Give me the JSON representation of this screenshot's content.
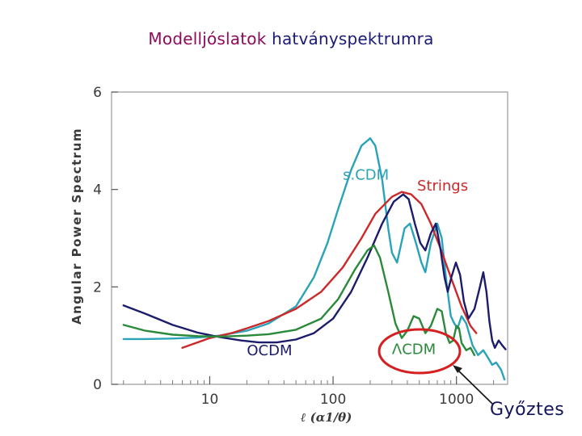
{
  "title": {
    "part1": "Modelljóslatok",
    "part2": "hatványspektrumra"
  },
  "annotation": {
    "label": "Győztes",
    "target": "ΛCDM",
    "color": "#d42020"
  },
  "chart_data": {
    "type": "line",
    "title": "",
    "xlabel": "ℓ  (α1/θ)",
    "ylabel": "Angular Power Spectrum",
    "xscale": "log",
    "xlim": [
      1.6,
      2600
    ],
    "ylim": [
      0,
      6
    ],
    "xticks": [
      10,
      100,
      1000
    ],
    "xtick_labels": [
      "10",
      "100",
      "1000"
    ],
    "yticks": [
      0,
      2,
      4,
      6
    ],
    "ytick_labels": [
      "0",
      "2",
      "4",
      "6"
    ],
    "grid": false,
    "series": [
      {
        "name": "s.CDM",
        "color": "#2aa3b8",
        "label_at": [
          120,
          4.2
        ],
        "points": [
          [
            2,
            0.93
          ],
          [
            3,
            0.93
          ],
          [
            5,
            0.94
          ],
          [
            8,
            0.96
          ],
          [
            12,
            1.0
          ],
          [
            20,
            1.1
          ],
          [
            30,
            1.25
          ],
          [
            50,
            1.6
          ],
          [
            70,
            2.2
          ],
          [
            90,
            2.9
          ],
          [
            110,
            3.6
          ],
          [
            140,
            4.4
          ],
          [
            170,
            4.9
          ],
          [
            200,
            5.05
          ],
          [
            220,
            4.9
          ],
          [
            250,
            4.2
          ],
          [
            280,
            3.2
          ],
          [
            300,
            2.7
          ],
          [
            330,
            2.5
          ],
          [
            380,
            3.2
          ],
          [
            420,
            3.3
          ],
          [
            470,
            2.9
          ],
          [
            520,
            2.5
          ],
          [
            560,
            2.3
          ],
          [
            620,
            2.9
          ],
          [
            700,
            3.3
          ],
          [
            760,
            3.0
          ],
          [
            830,
            2.1
          ],
          [
            900,
            1.4
          ],
          [
            960,
            1.25
          ],
          [
            1020,
            1.15
          ],
          [
            1100,
            1.4
          ],
          [
            1200,
            1.25
          ],
          [
            1350,
            0.8
          ],
          [
            1500,
            0.6
          ],
          [
            1650,
            0.7
          ],
          [
            1800,
            0.55
          ],
          [
            1950,
            0.4
          ],
          [
            2100,
            0.45
          ],
          [
            2300,
            0.3
          ],
          [
            2450,
            0.1
          ]
        ]
      },
      {
        "name": "Strings",
        "color": "#cc2a2a",
        "label_at": [
          480,
          3.98
        ],
        "points": [
          [
            6,
            0.75
          ],
          [
            10,
            0.95
          ],
          [
            15,
            1.05
          ],
          [
            20,
            1.15
          ],
          [
            30,
            1.3
          ],
          [
            50,
            1.55
          ],
          [
            80,
            1.9
          ],
          [
            120,
            2.4
          ],
          [
            170,
            3.0
          ],
          [
            220,
            3.5
          ],
          [
            300,
            3.85
          ],
          [
            360,
            3.95
          ],
          [
            430,
            3.9
          ],
          [
            520,
            3.7
          ],
          [
            620,
            3.3
          ],
          [
            740,
            2.8
          ],
          [
            900,
            2.2
          ],
          [
            1100,
            1.6
          ],
          [
            1300,
            1.2
          ],
          [
            1450,
            1.05
          ]
        ]
      },
      {
        "name": "OCDM",
        "color": "#1c1c6a",
        "label_at": [
          20,
          0.6
        ],
        "points": [
          [
            2,
            1.62
          ],
          [
            3,
            1.45
          ],
          [
            5,
            1.22
          ],
          [
            8,
            1.06
          ],
          [
            12,
            0.97
          ],
          [
            18,
            0.9
          ],
          [
            25,
            0.86
          ],
          [
            35,
            0.86
          ],
          [
            50,
            0.92
          ],
          [
            70,
            1.05
          ],
          [
            100,
            1.35
          ],
          [
            140,
            1.9
          ],
          [
            190,
            2.6
          ],
          [
            250,
            3.3
          ],
          [
            310,
            3.75
          ],
          [
            370,
            3.9
          ],
          [
            410,
            3.8
          ],
          [
            460,
            3.3
          ],
          [
            510,
            2.9
          ],
          [
            560,
            2.75
          ],
          [
            620,
            3.1
          ],
          [
            680,
            3.3
          ],
          [
            740,
            2.8
          ],
          [
            800,
            2.2
          ],
          [
            850,
            1.9
          ],
          [
            910,
            2.2
          ],
          [
            990,
            2.5
          ],
          [
            1070,
            2.25
          ],
          [
            1150,
            1.7
          ],
          [
            1250,
            1.35
          ],
          [
            1400,
            1.55
          ],
          [
            1550,
            2.0
          ],
          [
            1650,
            2.3
          ],
          [
            1750,
            1.9
          ],
          [
            1850,
            1.3
          ],
          [
            1950,
            0.9
          ],
          [
            2050,
            0.75
          ],
          [
            2200,
            0.9
          ],
          [
            2350,
            0.8
          ],
          [
            2500,
            0.72
          ]
        ]
      },
      {
        "name": "ΛCDM",
        "color": "#2a8a3a",
        "label_at": [
          300,
          0.62
        ],
        "points": [
          [
            2,
            1.22
          ],
          [
            3,
            1.1
          ],
          [
            5,
            1.02
          ],
          [
            8,
            0.99
          ],
          [
            12,
            0.98
          ],
          [
            20,
            1.0
          ],
          [
            30,
            1.03
          ],
          [
            50,
            1.12
          ],
          [
            80,
            1.35
          ],
          [
            110,
            1.75
          ],
          [
            150,
            2.35
          ],
          [
            190,
            2.75
          ],
          [
            215,
            2.85
          ],
          [
            240,
            2.6
          ],
          [
            280,
            1.9
          ],
          [
            320,
            1.25
          ],
          [
            360,
            0.95
          ],
          [
            400,
            1.1
          ],
          [
            450,
            1.4
          ],
          [
            500,
            1.35
          ],
          [
            560,
            1.05
          ],
          [
            620,
            1.2
          ],
          [
            700,
            1.55
          ],
          [
            760,
            1.5
          ],
          [
            820,
            1.05
          ],
          [
            880,
            0.85
          ],
          [
            940,
            0.9
          ],
          [
            1000,
            1.2
          ],
          [
            1050,
            1.15
          ],
          [
            1100,
            0.85
          ],
          [
            1200,
            0.7
          ],
          [
            1300,
            0.75
          ],
          [
            1400,
            0.6
          ]
        ]
      }
    ]
  }
}
